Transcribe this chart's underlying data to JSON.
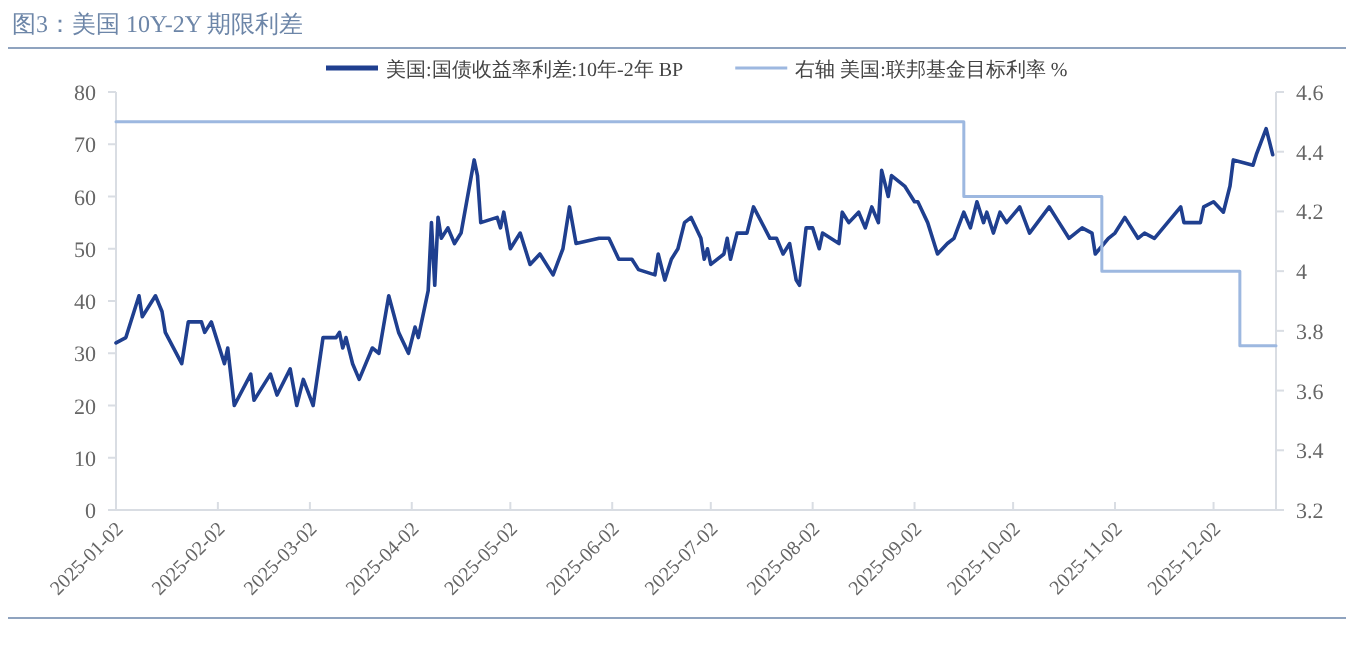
{
  "chart_data": {
    "type": "line",
    "title": "图3：美国 10Y-2Y 期限利差",
    "legend": "top",
    "grid": false,
    "xlim": [
      "2025-01-02",
      "2025-12-21"
    ],
    "xticks": [
      "2025-01-02",
      "2025-02-02",
      "2025-03-02",
      "2025-04-02",
      "2025-05-02",
      "2025-06-02",
      "2025-07-02",
      "2025-08-02",
      "2025-09-02",
      "2025-10-02",
      "2025-11-02",
      "2025-12-02"
    ],
    "ylim": [
      0,
      80
    ],
    "yticks": [
      0,
      10,
      20,
      30,
      40,
      50,
      60,
      70,
      80
    ],
    "y2lim": [
      3.2,
      4.6
    ],
    "y2ticks": [
      3.2,
      3.4,
      3.6,
      3.8,
      4,
      4.2,
      4.4,
      4.6
    ],
    "series": [
      {
        "name": "美国:国债收益率利差:10年-2年 BP",
        "color": "#1f3f8f",
        "x": [
          "2025-01-02",
          "2025-01-05",
          "2025-01-09",
          "2025-01-10",
          "2025-01-14",
          "2025-01-16",
          "2025-01-17",
          "2025-01-22",
          "2025-01-24",
          "2025-01-28",
          "2025-01-29",
          "2025-01-31",
          "2025-02-04",
          "2025-02-05",
          "2025-02-07",
          "2025-02-12",
          "2025-02-13",
          "2025-02-18",
          "2025-02-20",
          "2025-02-24",
          "2025-02-26",
          "2025-02-28",
          "2025-03-03",
          "2025-03-06",
          "2025-03-10",
          "2025-03-11",
          "2025-03-12",
          "2025-03-13",
          "2025-03-15",
          "2025-03-17",
          "2025-03-21",
          "2025-03-23",
          "2025-03-26",
          "2025-03-29",
          "2025-04-01",
          "2025-04-03",
          "2025-04-04",
          "2025-04-07",
          "2025-04-08",
          "2025-04-09",
          "2025-04-10",
          "2025-04-11",
          "2025-04-13",
          "2025-04-15",
          "2025-04-17",
          "2025-04-21",
          "2025-04-22",
          "2025-04-23",
          "2025-04-28",
          "2025-04-29",
          "2025-04-30",
          "2025-05-02",
          "2025-05-05",
          "2025-05-08",
          "2025-05-11",
          "2025-05-15",
          "2025-05-18",
          "2025-05-20",
          "2025-05-22",
          "2025-05-29",
          "2025-06-01",
          "2025-06-04",
          "2025-06-08",
          "2025-06-10",
          "2025-06-15",
          "2025-06-16",
          "2025-06-18",
          "2025-06-20",
          "2025-06-22",
          "2025-06-24",
          "2025-06-26",
          "2025-06-29",
          "2025-06-30",
          "2025-07-01",
          "2025-07-02",
          "2025-07-06",
          "2025-07-07",
          "2025-07-08",
          "2025-07-10",
          "2025-07-13",
          "2025-07-15",
          "2025-07-20",
          "2025-07-22",
          "2025-07-24",
          "2025-07-26",
          "2025-07-28",
          "2025-07-29",
          "2025-07-31",
          "2025-08-02",
          "2025-08-04",
          "2025-08-05",
          "2025-08-10",
          "2025-08-11",
          "2025-08-13",
          "2025-08-16",
          "2025-08-18",
          "2025-08-20",
          "2025-08-22",
          "2025-08-23",
          "2025-08-25",
          "2025-08-26",
          "2025-08-30",
          "2025-09-02",
          "2025-09-03",
          "2025-09-06",
          "2025-09-09",
          "2025-09-12",
          "2025-09-14",
          "2025-09-17",
          "2025-09-19",
          "2025-09-21",
          "2025-09-23",
          "2025-09-24",
          "2025-09-26",
          "2025-09-28",
          "2025-09-30",
          "2025-10-04",
          "2025-10-07",
          "2025-10-13",
          "2025-10-16",
          "2025-10-19",
          "2025-10-23",
          "2025-10-26",
          "2025-10-27",
          "2025-10-31",
          "2025-11-02",
          "2025-11-05",
          "2025-11-09",
          "2025-11-11",
          "2025-11-14",
          "2025-11-18",
          "2025-11-22",
          "2025-11-23",
          "2025-11-28",
          "2025-11-29",
          "2025-12-02",
          "2025-12-05",
          "2025-12-07",
          "2025-12-08",
          "2025-12-14",
          "2025-12-15",
          "2025-12-18",
          "2025-12-20"
        ],
        "values": [
          32,
          33,
          41,
          37,
          41,
          38,
          34,
          28,
          36,
          36,
          34,
          36,
          28,
          31,
          20,
          26,
          21,
          26,
          22,
          27,
          20,
          25,
          20,
          33,
          33,
          34,
          31,
          33,
          28,
          25,
          31,
          30,
          41,
          34,
          30,
          35,
          33,
          42,
          55,
          43,
          56,
          52,
          54,
          51,
          53,
          67,
          64,
          55,
          56,
          54,
          57,
          50,
          53,
          47,
          49,
          45,
          50,
          58,
          51,
          52,
          52,
          48,
          48,
          46,
          45,
          49,
          44,
          48,
          50,
          55,
          56,
          52,
          48,
          50,
          47,
          49,
          52,
          48,
          53,
          53,
          58,
          52,
          52,
          49,
          51,
          44,
          43,
          54,
          54,
          50,
          53,
          51,
          57,
          55,
          57,
          54,
          58,
          55,
          65,
          60,
          64,
          62,
          59,
          59,
          55,
          49,
          51,
          52,
          57,
          54,
          59,
          55,
          57,
          53,
          57,
          55,
          58,
          53,
          58,
          55,
          52,
          54,
          53,
          49,
          52,
          53,
          56,
          52,
          53,
          52,
          55,
          58,
          55,
          55,
          58,
          59,
          57,
          62,
          67,
          66,
          68,
          73,
          68
        ]
      },
      {
        "name": "右轴 美国:联邦基金目标利率 %",
        "color": "#9db8e0",
        "type": "step",
        "axis": "y2",
        "x": [
          "2025-01-02",
          "2025-09-17",
          "2025-10-29",
          "2025-12-10",
          "2025-12-21"
        ],
        "values": [
          4.5,
          4.25,
          4.0,
          3.75,
          3.75
        ]
      }
    ]
  }
}
